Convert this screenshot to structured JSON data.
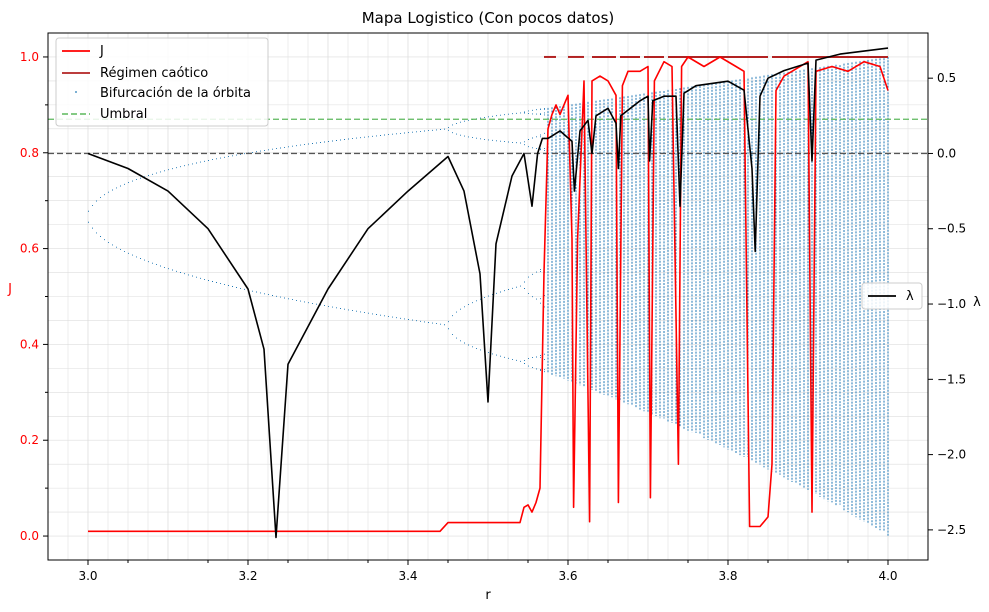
{
  "colors": {
    "j": "#ff0000",
    "chaos": "#b22222",
    "bifurcation": "#1f77b4",
    "umbral": "#5cb85c",
    "lambda": "#000000",
    "zero_line": "#555555",
    "j_axis": "#ff0000"
  },
  "chart_data": {
    "type": "line",
    "title": "Mapa Logistico (Con pocos datos)",
    "xlabel": "r",
    "ylabel_left": "J",
    "ylabel_right": "λ",
    "xlim": [
      2.95,
      4.05
    ],
    "ylim_left": [
      -0.05,
      1.05
    ],
    "ylim_right": [
      -2.7,
      0.8
    ],
    "x_ticks": [
      "3.0",
      "3.2",
      "3.4",
      "3.6",
      "3.8",
      "4.0"
    ],
    "y_left_ticks": [
      "0.0",
      "0.2",
      "0.4",
      "0.6",
      "0.8",
      "1.0"
    ],
    "y_right_ticks": [
      "0.5",
      "0.0",
      "−0.5",
      "−1.0",
      "−1.5",
      "−2.0",
      "−2.5"
    ],
    "grid": true,
    "legend_main": {
      "position": "top-left",
      "entries": [
        "J",
        "Régimen caótico",
        "Bifurcación de la órbita",
        "Umbral"
      ]
    },
    "legend_right": {
      "position": "center-right",
      "entries": [
        "λ"
      ]
    },
    "umbral_value": 0.87,
    "lambda_zero": 0.0,
    "chaos_level": 1.0,
    "chaos_segments": [
      [
        3.57,
        3.585
      ],
      [
        3.6,
        3.62
      ],
      [
        3.63,
        3.66
      ],
      [
        3.665,
        3.69
      ],
      [
        3.695,
        3.72
      ],
      [
        3.725,
        3.85
      ],
      [
        3.855,
        4.0
      ]
    ],
    "series": [
      {
        "name": "J",
        "axis": "left",
        "x": [
          3.0,
          3.44,
          3.45,
          3.54,
          3.545,
          3.55,
          3.555,
          3.56,
          3.565,
          3.57,
          3.575,
          3.58,
          3.585,
          3.59,
          3.6,
          3.605,
          3.607,
          3.612,
          3.62,
          3.627,
          3.63,
          3.64,
          3.65,
          3.66,
          3.663,
          3.668,
          3.675,
          3.69,
          3.7,
          3.703,
          3.708,
          3.72,
          3.73,
          3.738,
          3.742,
          3.75,
          3.77,
          3.79,
          3.81,
          3.82,
          3.827,
          3.84,
          3.845,
          3.85,
          3.855,
          3.86,
          3.87,
          3.88,
          3.9,
          3.905,
          3.91,
          3.93,
          3.95,
          3.97,
          3.99,
          4.0
        ],
        "y": [
          0.01,
          0.01,
          0.028,
          0.028,
          0.06,
          0.065,
          0.05,
          0.07,
          0.1,
          0.55,
          0.85,
          0.88,
          0.9,
          0.88,
          0.92,
          0.62,
          0.06,
          0.62,
          0.95,
          0.03,
          0.95,
          0.96,
          0.95,
          0.92,
          0.07,
          0.94,
          0.97,
          0.97,
          0.98,
          0.08,
          0.95,
          0.99,
          0.98,
          0.15,
          0.98,
          1.0,
          0.98,
          1.0,
          0.98,
          0.97,
          0.02,
          0.02,
          0.03,
          0.04,
          0.15,
          0.93,
          0.96,
          0.97,
          0.99,
          0.05,
          0.97,
          0.98,
          0.97,
          0.99,
          0.98,
          0.93
        ]
      },
      {
        "name": "λ",
        "axis": "right",
        "x": [
          3.0,
          3.05,
          3.1,
          3.15,
          3.2,
          3.22,
          3.235,
          3.25,
          3.3,
          3.35,
          3.4,
          3.45,
          3.47,
          3.49,
          3.5,
          3.51,
          3.53,
          3.545,
          3.555,
          3.562,
          3.568,
          3.575,
          3.59,
          3.605,
          3.608,
          3.615,
          3.625,
          3.63,
          3.635,
          3.65,
          3.66,
          3.663,
          3.666,
          3.69,
          3.7,
          3.702,
          3.706,
          3.72,
          3.735,
          3.74,
          3.745,
          3.76,
          3.8,
          3.82,
          3.83,
          3.834,
          3.84,
          3.85,
          3.87,
          3.9,
          3.905,
          3.91,
          3.94,
          3.97,
          4.0
        ],
        "y": [
          0.0,
          -0.1,
          -0.25,
          -0.5,
          -0.9,
          -1.3,
          -2.55,
          -1.4,
          -0.9,
          -0.5,
          -0.25,
          -0.02,
          -0.25,
          -0.8,
          -1.65,
          -0.6,
          -0.15,
          0.0,
          -0.35,
          0.0,
          0.1,
          0.1,
          0.15,
          0.08,
          -0.25,
          0.15,
          0.22,
          0.0,
          0.25,
          0.3,
          0.2,
          -0.1,
          0.25,
          0.35,
          0.38,
          -0.05,
          0.35,
          0.38,
          0.38,
          -0.35,
          0.4,
          0.45,
          0.48,
          0.42,
          -0.1,
          -0.65,
          0.38,
          0.5,
          0.55,
          0.6,
          -0.05,
          0.62,
          0.66,
          0.68,
          0.7
        ]
      }
    ]
  }
}
